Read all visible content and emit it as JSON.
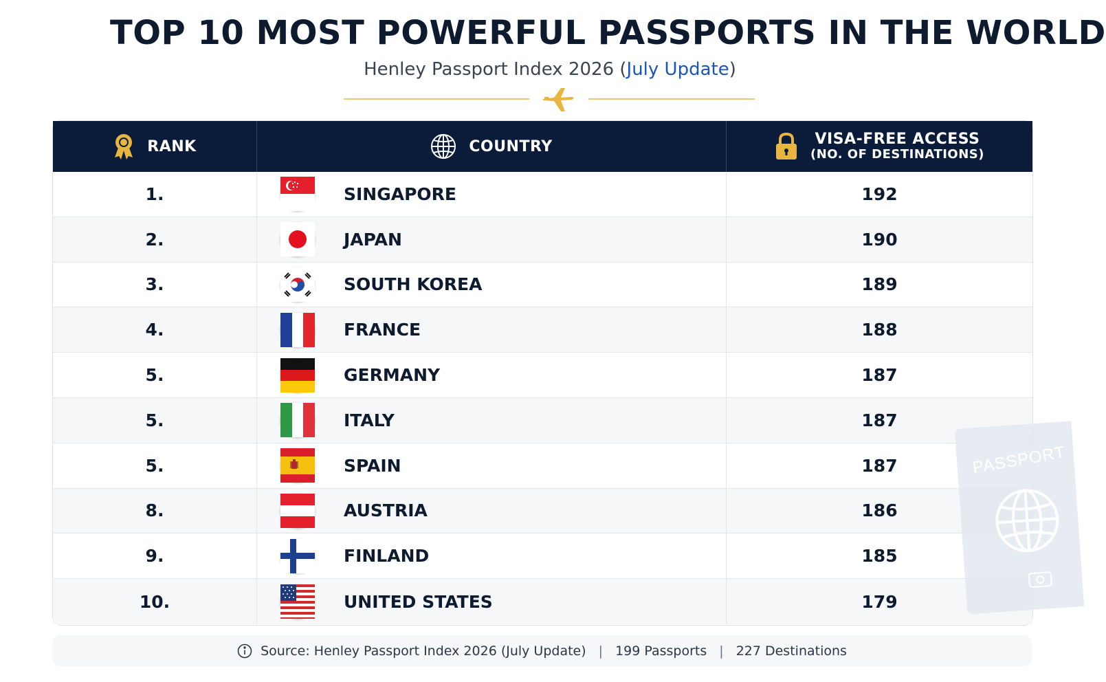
{
  "header": {
    "title": "TOP 10 MOST POWERFUL PASSPORTS IN THE WORLD",
    "subtitle_main": "Henley Passport Index 2026 (",
    "subtitle_highlight": "July Update",
    "subtitle_end": ")"
  },
  "table": {
    "columns": {
      "rank": "RANK",
      "country": "COUNTRY",
      "visa_main": "VISA-FREE ACCESS",
      "visa_sub": "(NO. OF DESTINATIONS)"
    },
    "rows": [
      {
        "rank": "1.",
        "country": "SINGAPORE",
        "visa": "192",
        "flag": "singapore-flag-icon"
      },
      {
        "rank": "2.",
        "country": "JAPAN",
        "visa": "190",
        "flag": "japan-flag-icon"
      },
      {
        "rank": "3.",
        "country": "SOUTH KOREA",
        "visa": "189",
        "flag": "south-korea-flag-icon"
      },
      {
        "rank": "4.",
        "country": "FRANCE",
        "visa": "188",
        "flag": "france-flag-icon"
      },
      {
        "rank": "5.",
        "country": "GERMANY",
        "visa": "187",
        "flag": "germany-flag-icon"
      },
      {
        "rank": "5.",
        "country": "ITALY",
        "visa": "187",
        "flag": "italy-flag-icon"
      },
      {
        "rank": "5.",
        "country": "SPAIN",
        "visa": "187",
        "flag": "spain-flag-icon"
      },
      {
        "rank": "8.",
        "country": "AUSTRIA",
        "visa": "186",
        "flag": "austria-flag-icon"
      },
      {
        "rank": "9.",
        "country": "FINLAND",
        "visa": "185",
        "flag": "finland-flag-icon"
      },
      {
        "rank": "10.",
        "country": "UNITED STATES",
        "visa": "179",
        "flag": "usa-flag-icon"
      }
    ]
  },
  "passport_watermark": "PASSPORT",
  "footer": {
    "source": "Source: Henley Passport Index 2026 (July Update)",
    "passports": "199 Passports",
    "destinations": "227 Destinations",
    "separator": "|"
  },
  "icons": {
    "rank": "award-ribbon-icon",
    "country": "globe-icon",
    "visa": "padlock-icon",
    "plane": "airplane-icon",
    "info": "info-icon"
  },
  "colors": {
    "header_bg": "#0b1c3a",
    "accent_gold": "#e8b640",
    "highlight_blue": "#1a55b8"
  }
}
